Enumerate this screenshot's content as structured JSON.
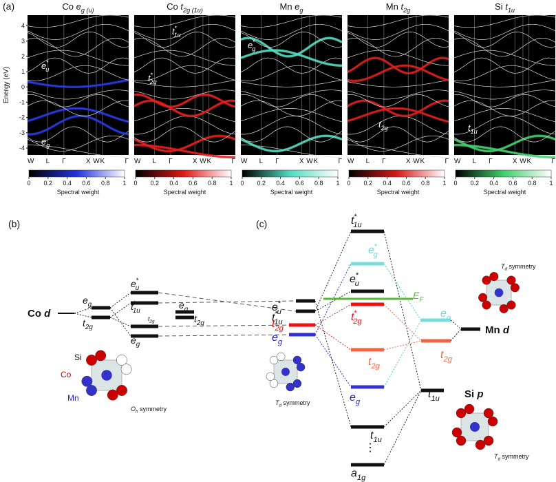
{
  "panel_a": {
    "label": "(a)",
    "y_axis_label": "Energy (eV)",
    "yticks": [
      4,
      3,
      2,
      1,
      0,
      -1,
      -2,
      -3,
      -4
    ],
    "ylim": [
      -4.45,
      4.7
    ],
    "k_points": [
      "W",
      "L",
      "Γ",
      "X",
      "W",
      "K",
      "Γ"
    ],
    "colorbar_ticks": [
      0,
      0.2,
      0.4,
      0.6,
      0.8,
      1
    ],
    "colorbar_label": "Spectral weight",
    "panels": [
      {
        "title": {
          "prefix": "Co ",
          "base": "e",
          "sub": "g (u)"
        },
        "annotations": [
          {
            "base": "e",
            "sup": "*",
            "sub": "u"
          },
          {
            "base": "e",
            "sub": "g"
          }
        ]
      },
      {
        "title": {
          "prefix": "Co ",
          "base": "t",
          "sub": "2g (1u)"
        },
        "annotations": [
          {
            "base": "t",
            "sup": "*",
            "sub": "1u"
          },
          {
            "base": "t",
            "sup": "*",
            "sub": "2g"
          }
        ]
      },
      {
        "title": {
          "prefix": "Mn ",
          "base": "e",
          "sub": "g"
        },
        "annotations": [
          {
            "base": "e",
            "sup": "*",
            "sub": "g"
          }
        ]
      },
      {
        "title": {
          "prefix": "Mn ",
          "base": "t",
          "sub": "2g"
        },
        "annotations": [
          {
            "base": "t",
            "sub": "2g"
          }
        ]
      },
      {
        "title": {
          "prefix": "Si ",
          "base": "t",
          "sub": "1u"
        },
        "annotations": [
          {
            "base": "t",
            "sub": "1u"
          }
        ]
      }
    ]
  },
  "panel_b": {
    "label": "(b)",
    "co_d": {
      "prefix": "Co ",
      "base": "d"
    },
    "levels": [
      {
        "base": "e",
        "sub": "g"
      },
      {
        "base": "t",
        "sub": "2g"
      },
      {
        "base": "e",
        "sup": "*",
        "sub": "u"
      },
      {
        "base": "t",
        "sup": "*",
        "sub": "1u"
      },
      {
        "base": "t",
        "sub": "2g"
      },
      {
        "base": "e",
        "sub": "g"
      },
      {
        "base": "e",
        "sub": "g"
      },
      {
        "base": "t",
        "sub": "2g"
      }
    ],
    "atoms": [
      "Si",
      "Co",
      "Mn"
    ],
    "symmetry": {
      "base": "O",
      "sub": "h",
      "suffix": " symmetry"
    }
  },
  "panel_c": {
    "label": "(c)",
    "left_levels": [
      {
        "base": "e",
        "sup": "*",
        "sub": "u"
      },
      {
        "base": "t",
        "sup": "*",
        "sub": "1u"
      },
      {
        "base": "t",
        "sub": "2g"
      },
      {
        "base": "e",
        "sub": "g"
      }
    ],
    "center_levels": [
      {
        "base": "t",
        "sup": "*",
        "sub": "1u"
      },
      {
        "base": "e",
        "sup": "*",
        "sub": "g"
      },
      {
        "base": "e",
        "sup": "*",
        "sub": "u"
      },
      {
        "base": "t",
        "sup": "*",
        "sub": "2g"
      },
      {
        "base": "t",
        "sub": "2g"
      },
      {
        "base": "e",
        "sub": "g"
      },
      {
        "base": "t",
        "sub": "1u"
      },
      {
        "base": "a",
        "sub": "1g"
      }
    ],
    "fermi": {
      "base": "E",
      "sub": "F"
    },
    "right_levels": [
      {
        "base": "e",
        "sub": "g"
      },
      {
        "base": "t",
        "sub": "2g"
      },
      {
        "base": "t",
        "sub": "1u"
      }
    ],
    "mn_d": {
      "prefix": "Mn ",
      "base": "d"
    },
    "si_p": {
      "prefix": "Si ",
      "base": "p"
    },
    "dots": "⋮",
    "symmetry_labels": [
      {
        "base": "T",
        "sub": "d",
        "suffix": " symmetry"
      },
      {
        "base": "T",
        "sub": "d",
        "suffix": " symmetry"
      },
      {
        "base": "T",
        "sub": "d",
        "suffix": " symmetry"
      }
    ]
  }
}
